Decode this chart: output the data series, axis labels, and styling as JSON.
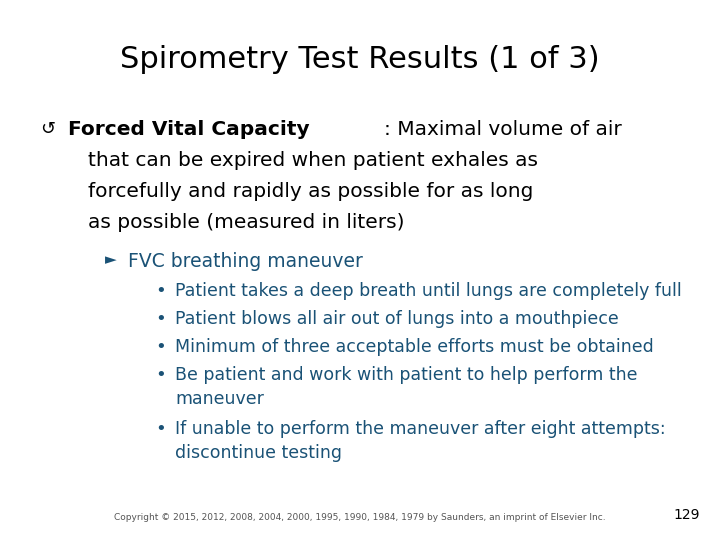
{
  "title": "Spirometry Test Results (1 of 3)",
  "bg_color": "#ffffff",
  "title_color": "#000000",
  "title_fontsize": 22,
  "bullet_symbol": "↺",
  "bullet1_bold": "Forced Vital Capacity",
  "bullet1_normal_line1": ": Maximal volume of air",
  "bullet1_cont_lines": [
    "that can be expired when patient exhales as",
    "forcefully and rapidly as possible for as long",
    "as possible (measured in liters)"
  ],
  "sub_bullet_symbol": "►",
  "sub_bullet_color": "#1a5276",
  "sub_bullet": "FVC breathing maneuver",
  "items": [
    "Patient takes a deep breath until lungs are completely full",
    "Patient blows all air out of lungs into a mouthpiece",
    "Minimum of three acceptable efforts must be obtained",
    [
      "Be patient and work with patient to help perform the",
      "maneuver"
    ],
    [
      "If unable to perform the maneuver after eight attempts:",
      "discontinue testing"
    ]
  ],
  "item_color": "#1a5276",
  "text_color": "#000000",
  "main_fontsize": 14.5,
  "sub_fontsize": 13.5,
  "item_fontsize": 12.5,
  "copyright": "Copyright © 2015, 2012, 2008, 2004, 2000, 1995, 1990, 1984, 1979 by Saunders, an imprint of Elsevier Inc.",
  "copyright_fontsize": 6.5,
  "page_num": "129",
  "page_fontsize": 10
}
